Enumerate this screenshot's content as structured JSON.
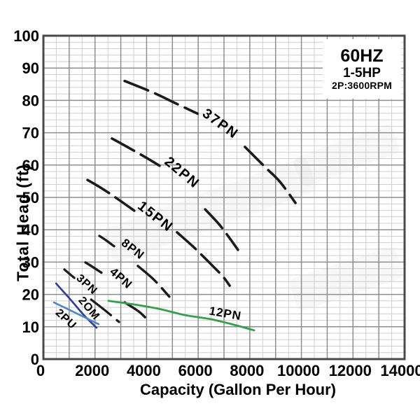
{
  "chart_data": {
    "type": "line",
    "xlabel": "Capacity (Gallon Per Hour)",
    "ylabel": "Total Head (ft)",
    "info_box": {
      "line1": "60HZ",
      "line2": "1-5HP",
      "line3": "2P:3600RPM"
    },
    "xlim": [
      0,
      14000
    ],
    "ylim": [
      0,
      100
    ],
    "xticks": {
      "values": [
        0,
        2000,
        4000,
        6000,
        8000,
        10000,
        12000,
        14000
      ],
      "labels": [
        "0",
        "2000",
        "4000",
        "6000",
        "8000",
        "10000",
        "12000",
        "14000"
      ]
    },
    "yticks": {
      "values": [
        0,
        10,
        20,
        30,
        40,
        50,
        60,
        70,
        80,
        90,
        100
      ],
      "labels": [
        "0",
        "10",
        "20",
        "30",
        "40",
        "50",
        "60",
        "70",
        "80",
        "90",
        "100"
      ]
    },
    "grid": {
      "x_minor": 500,
      "x_major": 1000,
      "y_minor": 2,
      "y_major": 10,
      "minor_color": "#cfcfcf",
      "major_color": "#8e8e8e",
      "border_color": "#4a4a4a"
    },
    "series": [
      {
        "name": "37PN",
        "color": "#1b1b1b",
        "dashed": true,
        "width": 3.6,
        "label": {
          "text": "37PN",
          "x": 6860,
          "y": 72.7,
          "rot": 36,
          "size": 20,
          "ls": 2
        },
        "segments": [
          [
            [
              3150,
              86.0
            ],
            [
              4200,
              82.6
            ],
            [
              5100,
              79.2
            ],
            [
              5970,
              75.9
            ]
          ],
          [
            [
              7810,
              65.6
            ],
            [
              8630,
              59.1
            ],
            [
              9170,
              54.8
            ],
            [
              9770,
              48.3
            ]
          ]
        ]
      },
      {
        "name": "22PN",
        "color": "#1b1b1b",
        "dashed": true,
        "width": 3.6,
        "label": {
          "text": "22PN",
          "x": 5370,
          "y": 57.6,
          "rot": 40,
          "size": 20,
          "ls": 2
        },
        "segments": [
          [
            [
              2660,
              68.2
            ],
            [
              3300,
              65.4
            ],
            [
              4000,
              62.2
            ],
            [
              4500,
              59.8
            ]
          ],
          [
            [
              6270,
              46.3
            ],
            [
              6800,
              41.8
            ],
            [
              7200,
              37.6
            ],
            [
              7540,
              33.8
            ]
          ]
        ]
      },
      {
        "name": "15PN",
        "color": "#1b1b1b",
        "dashed": true,
        "width": 3.6,
        "label": {
          "text": "15PN",
          "x": 4340,
          "y": 44.0,
          "rot": 38,
          "size": 20,
          "ls": 2
        },
        "segments": [
          [
            [
              1710,
              55.4
            ],
            [
              2300,
              52.6
            ],
            [
              2900,
              49.4
            ],
            [
              3520,
              45.9
            ]
          ],
          [
            [
              5180,
              39.2
            ],
            [
              5800,
              34.8
            ],
            [
              6400,
              30.1
            ],
            [
              6950,
              25.6
            ],
            [
              7220,
              22.7
            ]
          ]
        ]
      },
      {
        "name": "8PN",
        "color": "#1b1b1b",
        "dashed": true,
        "width": 3.4,
        "label": {
          "text": "8PN",
          "x": 3470,
          "y": 34.0,
          "rot": 38,
          "size": 17,
          "ls": 1
        },
        "segments": [
          [
            [
              2170,
              38.1
            ],
            [
              2450,
              36.6
            ],
            [
              2740,
              34.9
            ]
          ],
          [
            [
              3660,
              28.8
            ],
            [
              4290,
              24.5
            ],
            [
              4880,
              19.3
            ]
          ]
        ]
      },
      {
        "name": "4PN",
        "color": "#1b1b1b",
        "dashed": true,
        "width": 3.4,
        "label": {
          "text": "4PN",
          "x": 3010,
          "y": 25.0,
          "rot": 41,
          "size": 17,
          "ls": 1
        },
        "segments": [
          [
            [
              1630,
              29.9
            ],
            [
              1950,
              28.3
            ],
            [
              2250,
              26.7
            ]
          ],
          [
            [
              3150,
              17.5
            ],
            [
              3700,
              14.7
            ],
            [
              4070,
              11.9
            ]
          ]
        ]
      },
      {
        "name": "3PN",
        "color": "#1b1b1b",
        "dashed": true,
        "width": 3.2,
        "label": {
          "text": "3PN",
          "x": 1680,
          "y": 23.0,
          "rot": 42,
          "size": 16,
          "ls": 1
        },
        "segments": [
          [
            [
              815,
              27.7
            ],
            [
              1050,
              26.1
            ],
            [
              1200,
              25.1
            ]
          ],
          [
            [
              1850,
              18.4
            ],
            [
              2400,
              15.0
            ],
            [
              2930,
              11.5
            ]
          ]
        ]
      },
      {
        "name": "2OM",
        "color": "#2e3d9c",
        "dashed": false,
        "width": 2.6,
        "label": {
          "text": "2OM",
          "x": 1763,
          "y": 15.6,
          "rot": 50,
          "size": 16,
          "ls": 1
        },
        "segments": [
          [
            [
              490,
              23.4
            ],
            [
              1030,
              18.6
            ],
            [
              1570,
              13.6
            ],
            [
              2060,
              9.7
            ]
          ]
        ]
      },
      {
        "name": "2PU",
        "color": "#4e86c6",
        "dashed": false,
        "width": 2.6,
        "label": {
          "text": "2PU",
          "x": 868,
          "y": 12.3,
          "rot": 43,
          "size": 16,
          "ls": 1
        },
        "segments": [
          [
            [
              410,
              17.5
            ],
            [
              1300,
              14.1
            ],
            [
              2140,
              10.8
            ]
          ]
        ]
      },
      {
        "name": "12PN",
        "color": "#33a04c",
        "dashed": false,
        "width": 2.8,
        "label": {
          "text": "12PN",
          "x": 7050,
          "y": 14.1,
          "rot": 10,
          "size": 17,
          "ls": 1
        },
        "segments": [
          [
            [
              2520,
              18.0
            ],
            [
              3500,
              16.9
            ],
            [
              4500,
              15.5
            ],
            [
              5500,
              13.6
            ],
            [
              6460,
              12.4
            ],
            [
              7300,
              10.8
            ],
            [
              8170,
              8.9
            ]
          ]
        ]
      }
    ]
  }
}
